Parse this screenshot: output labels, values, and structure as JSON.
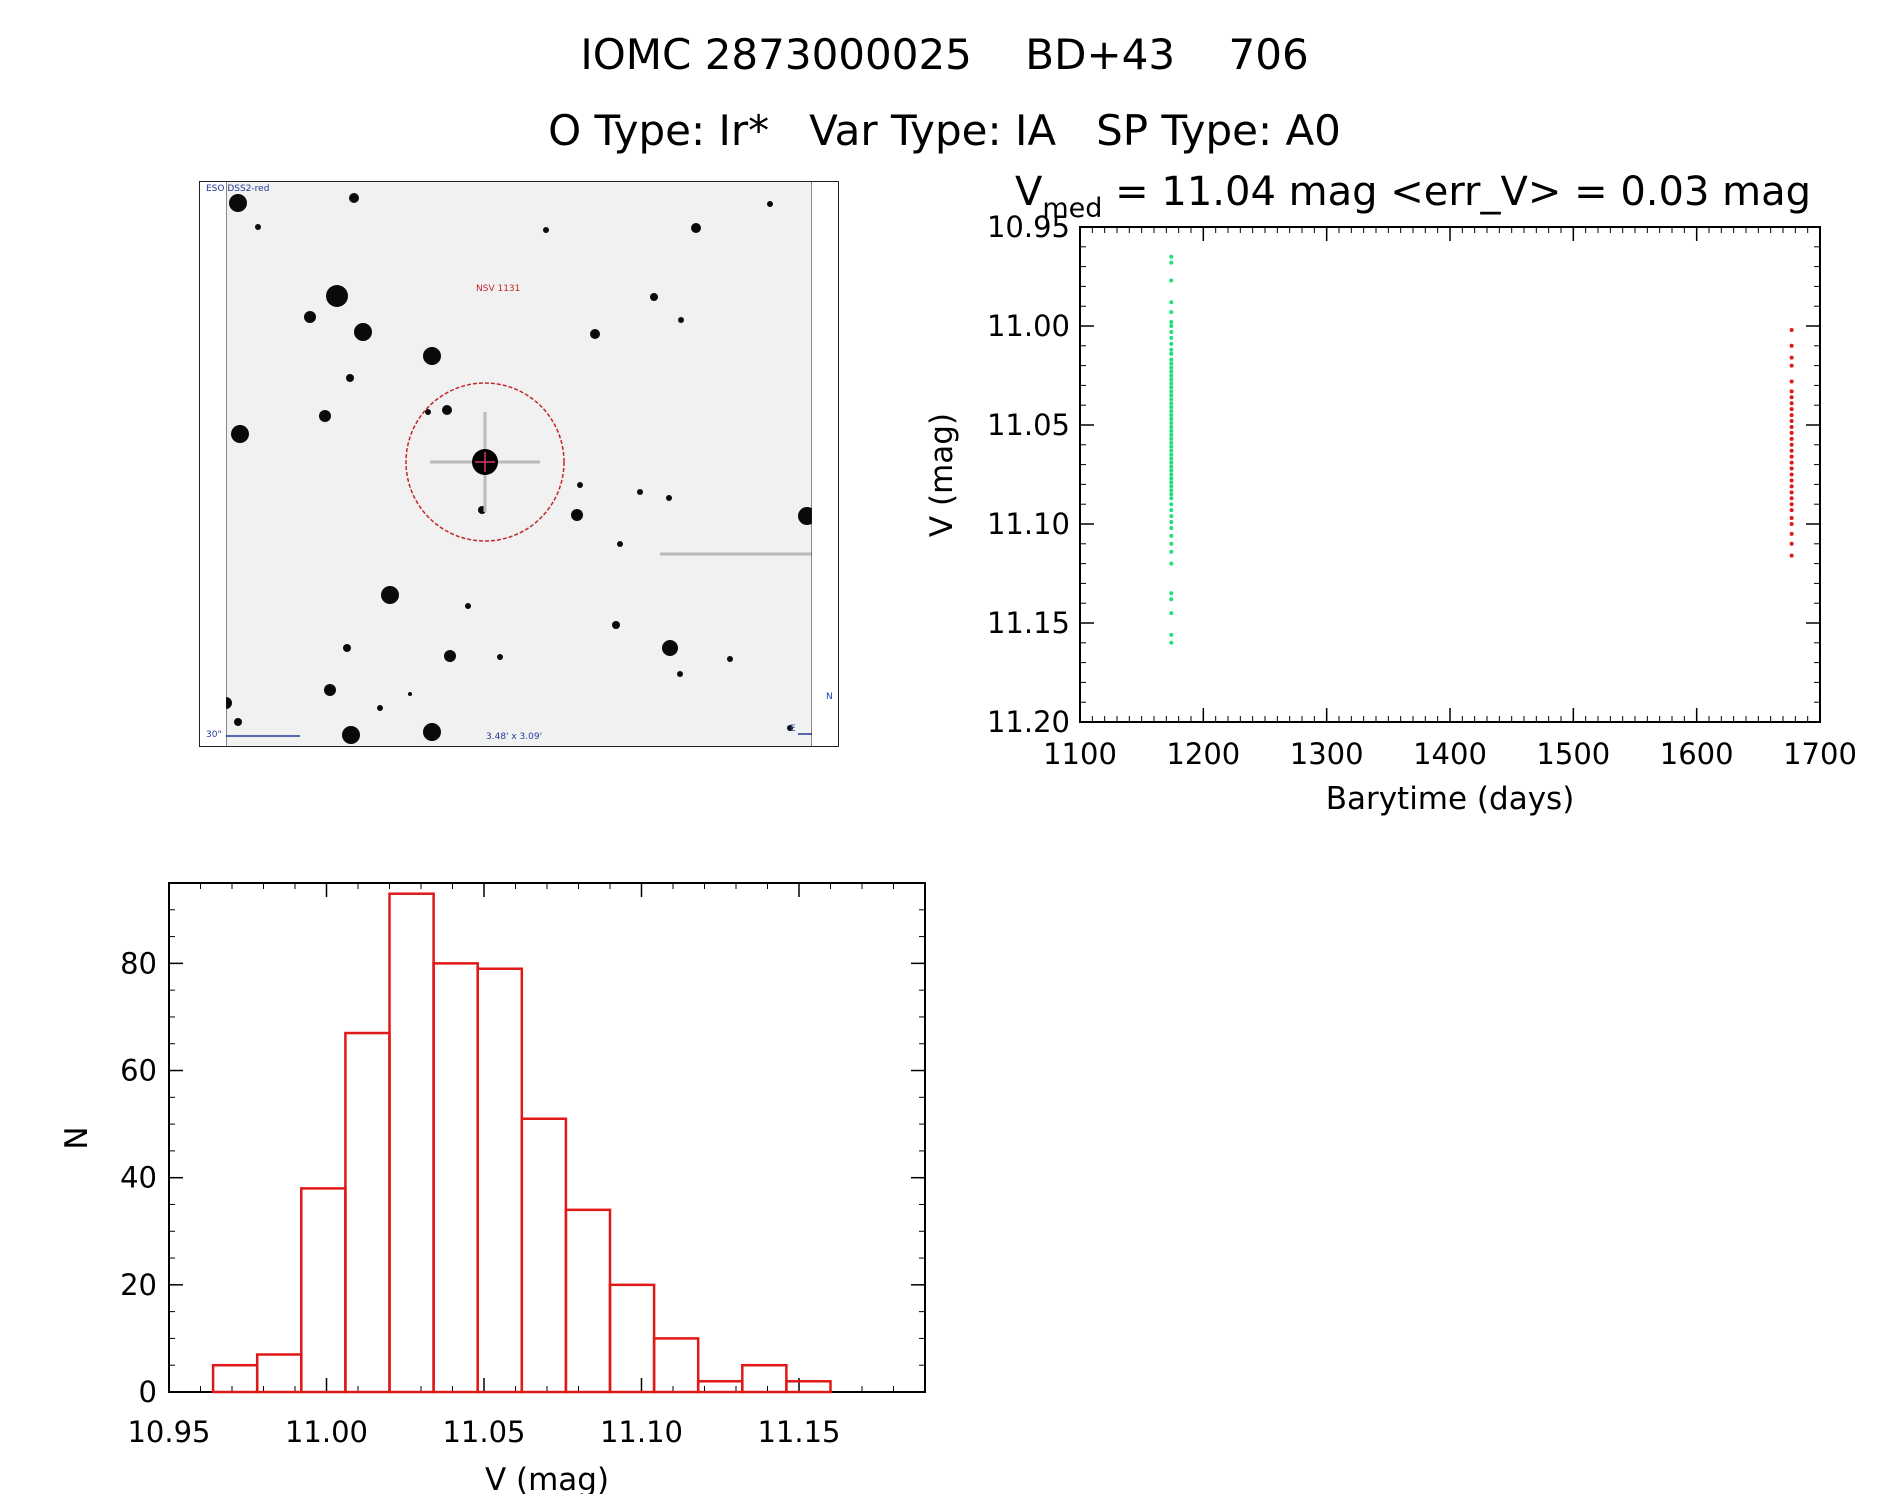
{
  "header": {
    "title": "IOMC 2873000025    BD+43    706",
    "subtitle": "O Type: Ir*   Var Type: IA   SP Type: A0"
  },
  "finder_chart": {
    "survey_label": "ESO DSS2-red",
    "object_label": "NSV 1131",
    "scale_label": "30\"",
    "fov_label": "3.48' x 3.09'",
    "compass_north": "N",
    "compass_east": "E"
  },
  "chart_data": [
    {
      "type": "scatter",
      "title_prefix": "V",
      "title_subscript": "med",
      "title_rest": " = 11.04 mag <err_V> = 0.03 mag",
      "xlabel": "Barytime (days)",
      "ylabel": "V (mag)",
      "xlim": [
        1100,
        1700
      ],
      "ylim": [
        11.2,
        10.95
      ],
      "y_inverted": true,
      "x_ticks": [
        1100,
        1200,
        1300,
        1400,
        1500,
        1600,
        1700
      ],
      "y_ticks": [
        "10.95",
        "11.00",
        "11.05",
        "11.10",
        "11.15",
        "11.20"
      ],
      "series": [
        {
          "color": "#22e07a",
          "points": [
            [
              1174,
              10.965
            ],
            [
              1174,
              10.968
            ],
            [
              1174,
              10.977
            ],
            [
              1174,
              10.988
            ],
            [
              1174,
              10.993
            ],
            [
              1174,
              10.998
            ],
            [
              1174,
              11.0
            ],
            [
              1174,
              11.003
            ],
            [
              1174,
              11.006
            ],
            [
              1174,
              11.009
            ],
            [
              1174,
              11.012
            ],
            [
              1174,
              11.014
            ],
            [
              1174,
              11.017
            ],
            [
              1174,
              11.019
            ],
            [
              1174,
              11.021
            ],
            [
              1174,
              11.023
            ],
            [
              1174,
              11.025
            ],
            [
              1174,
              11.027
            ],
            [
              1174,
              11.029
            ],
            [
              1174,
              11.031
            ],
            [
              1174,
              11.033
            ],
            [
              1174,
              11.035
            ],
            [
              1174,
              11.037
            ],
            [
              1174,
              11.039
            ],
            [
              1174,
              11.041
            ],
            [
              1174,
              11.043
            ],
            [
              1174,
              11.045
            ],
            [
              1174,
              11.047
            ],
            [
              1174,
              11.049
            ],
            [
              1174,
              11.051
            ],
            [
              1174,
              11.053
            ],
            [
              1174,
              11.055
            ],
            [
              1174,
              11.057
            ],
            [
              1174,
              11.059
            ],
            [
              1174,
              11.061
            ],
            [
              1174,
              11.063
            ],
            [
              1174,
              11.065
            ],
            [
              1174,
              11.067
            ],
            [
              1174,
              11.069
            ],
            [
              1174,
              11.071
            ],
            [
              1174,
              11.073
            ],
            [
              1174,
              11.075
            ],
            [
              1174,
              11.077
            ],
            [
              1174,
              11.079
            ],
            [
              1174,
              11.081
            ],
            [
              1174,
              11.083
            ],
            [
              1174,
              11.085
            ],
            [
              1174,
              11.087
            ],
            [
              1174,
              11.09
            ],
            [
              1174,
              11.093
            ],
            [
              1174,
              11.096
            ],
            [
              1174,
              11.099
            ],
            [
              1174,
              11.102
            ],
            [
              1174,
              11.106
            ],
            [
              1174,
              11.11
            ],
            [
              1174,
              11.114
            ],
            [
              1174,
              11.12
            ],
            [
              1174,
              11.135
            ],
            [
              1174,
              11.138
            ],
            [
              1174,
              11.145
            ],
            [
              1174,
              11.156
            ],
            [
              1174,
              11.16
            ]
          ]
        },
        {
          "color": "#e01818",
          "points": [
            [
              1677,
              11.002
            ],
            [
              1677,
              11.01
            ],
            [
              1677,
              11.016
            ],
            [
              1677,
              11.02
            ],
            [
              1677,
              11.028
            ],
            [
              1677,
              11.033
            ],
            [
              1677,
              11.036
            ],
            [
              1677,
              11.039
            ],
            [
              1677,
              11.042
            ],
            [
              1677,
              11.045
            ],
            [
              1677,
              11.048
            ],
            [
              1677,
              11.051
            ],
            [
              1677,
              11.054
            ],
            [
              1677,
              11.057
            ],
            [
              1677,
              11.06
            ],
            [
              1677,
              11.063
            ],
            [
              1677,
              11.066
            ],
            [
              1677,
              11.069
            ],
            [
              1677,
              11.072
            ],
            [
              1677,
              11.075
            ],
            [
              1677,
              11.078
            ],
            [
              1677,
              11.081
            ],
            [
              1677,
              11.084
            ],
            [
              1677,
              11.087
            ],
            [
              1677,
              11.09
            ],
            [
              1677,
              11.093
            ],
            [
              1677,
              11.097
            ],
            [
              1677,
              11.1
            ],
            [
              1677,
              11.105
            ],
            [
              1677,
              11.11
            ],
            [
              1677,
              11.116
            ]
          ]
        }
      ]
    },
    {
      "type": "bar",
      "histogram": true,
      "xlabel": "V (mag)",
      "ylabel": "N",
      "xlim": [
        10.95,
        11.19
      ],
      "ylim": [
        0,
        95
      ],
      "x_ticks": [
        "10.95",
        "11.00",
        "11.05",
        "11.10",
        "11.15"
      ],
      "y_ticks": [
        0,
        20,
        40,
        60,
        80
      ],
      "bin_edges": [
        10.964,
        10.978,
        10.992,
        11.006,
        11.02,
        11.034,
        11.048,
        11.062,
        11.076,
        11.09,
        11.104,
        11.118,
        11.132,
        11.146,
        11.16
      ],
      "counts": [
        5,
        7,
        38,
        67,
        93,
        80,
        79,
        51,
        34,
        20,
        10,
        2,
        5,
        2
      ],
      "color": "#e01818"
    }
  ]
}
